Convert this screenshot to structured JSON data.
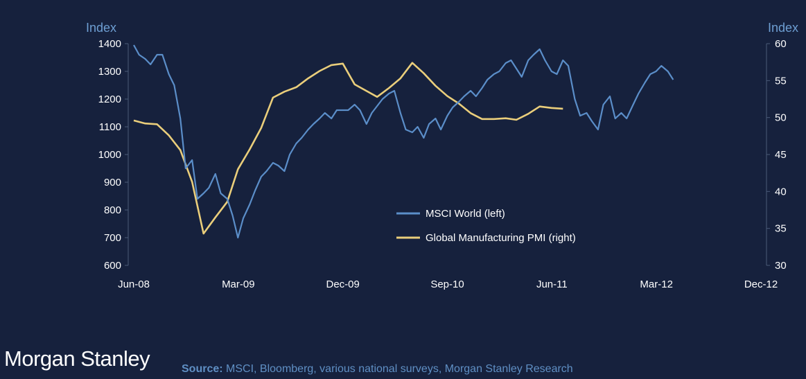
{
  "chart_data": {
    "type": "line",
    "left_axis_unit": "Index",
    "right_axis_unit": "Index",
    "x_tick_labels": [
      "Jun-08",
      "Mar-09",
      "Dec-09",
      "Sep-10",
      "Jun-11",
      "Mar-12",
      "Dec-12"
    ],
    "xlim": [
      "2008-06",
      "2012-12"
    ],
    "left_ylim": [
      600,
      1400
    ],
    "left_yticks": [
      600,
      700,
      800,
      900,
      1000,
      1100,
      1200,
      1300,
      1400
    ],
    "right_ylim": [
      30,
      60
    ],
    "right_yticks": [
      30,
      35,
      40,
      45,
      50,
      55,
      60
    ],
    "legend_position": "lower-right",
    "series": [
      {
        "name": "MSCI World (left)",
        "axis": "left",
        "color": "#5b8ec9",
        "points": [
          [
            "2008-06-01",
            1395
          ],
          [
            "2008-06-15",
            1360
          ],
          [
            "2008-07-01",
            1345
          ],
          [
            "2008-07-15",
            1325
          ],
          [
            "2008-08-01",
            1360
          ],
          [
            "2008-08-15",
            1360
          ],
          [
            "2008-09-01",
            1290
          ],
          [
            "2008-09-15",
            1250
          ],
          [
            "2008-10-01",
            1130
          ],
          [
            "2008-10-15",
            950
          ],
          [
            "2008-11-01",
            980
          ],
          [
            "2008-11-15",
            840
          ],
          [
            "2008-12-01",
            860
          ],
          [
            "2008-12-15",
            880
          ],
          [
            "2009-01-01",
            930
          ],
          [
            "2009-01-15",
            860
          ],
          [
            "2009-02-01",
            840
          ],
          [
            "2009-02-15",
            780
          ],
          [
            "2009-03-01",
            700
          ],
          [
            "2009-03-15",
            770
          ],
          [
            "2009-04-01",
            820
          ],
          [
            "2009-04-15",
            870
          ],
          [
            "2009-05-01",
            920
          ],
          [
            "2009-05-15",
            940
          ],
          [
            "2009-06-01",
            970
          ],
          [
            "2009-06-15",
            960
          ],
          [
            "2009-07-01",
            940
          ],
          [
            "2009-07-15",
            1000
          ],
          [
            "2009-08-01",
            1040
          ],
          [
            "2009-08-15",
            1060
          ],
          [
            "2009-09-01",
            1090
          ],
          [
            "2009-09-15",
            1110
          ],
          [
            "2009-10-01",
            1130
          ],
          [
            "2009-10-15",
            1150
          ],
          [
            "2009-11-01",
            1130
          ],
          [
            "2009-11-15",
            1160
          ],
          [
            "2009-12-01",
            1160
          ],
          [
            "2009-12-15",
            1160
          ],
          [
            "2010-01-01",
            1180
          ],
          [
            "2010-01-15",
            1160
          ],
          [
            "2010-02-01",
            1110
          ],
          [
            "2010-02-15",
            1150
          ],
          [
            "2010-03-01",
            1175
          ],
          [
            "2010-03-15",
            1200
          ],
          [
            "2010-04-01",
            1220
          ],
          [
            "2010-04-15",
            1230
          ],
          [
            "2010-05-01",
            1150
          ],
          [
            "2010-05-15",
            1090
          ],
          [
            "2010-06-01",
            1080
          ],
          [
            "2010-06-15",
            1100
          ],
          [
            "2010-07-01",
            1060
          ],
          [
            "2010-07-15",
            1110
          ],
          [
            "2010-08-01",
            1130
          ],
          [
            "2010-08-15",
            1090
          ],
          [
            "2010-09-01",
            1140
          ],
          [
            "2010-09-15",
            1170
          ],
          [
            "2010-10-01",
            1190
          ],
          [
            "2010-10-15",
            1210
          ],
          [
            "2010-11-01",
            1230
          ],
          [
            "2010-11-15",
            1210
          ],
          [
            "2010-12-01",
            1240
          ],
          [
            "2010-12-15",
            1270
          ],
          [
            "2011-01-01",
            1290
          ],
          [
            "2011-01-15",
            1300
          ],
          [
            "2011-02-01",
            1330
          ],
          [
            "2011-02-15",
            1340
          ],
          [
            "2011-03-01",
            1310
          ],
          [
            "2011-03-15",
            1280
          ],
          [
            "2011-04-01",
            1340
          ],
          [
            "2011-04-15",
            1360
          ],
          [
            "2011-05-01",
            1380
          ],
          [
            "2011-05-15",
            1340
          ],
          [
            "2011-06-01",
            1300
          ],
          [
            "2011-06-15",
            1290
          ],
          [
            "2011-07-01",
            1340
          ],
          [
            "2011-07-15",
            1320
          ],
          [
            "2011-08-01",
            1200
          ],
          [
            "2011-08-15",
            1140
          ],
          [
            "2011-09-01",
            1150
          ],
          [
            "2011-09-15",
            1120
          ],
          [
            "2011-10-01",
            1090
          ],
          [
            "2011-10-15",
            1180
          ],
          [
            "2011-11-01",
            1210
          ],
          [
            "2011-11-15",
            1130
          ],
          [
            "2011-12-01",
            1150
          ],
          [
            "2011-12-15",
            1130
          ],
          [
            "2012-01-01",
            1180
          ],
          [
            "2012-01-15",
            1220
          ],
          [
            "2012-02-01",
            1260
          ],
          [
            "2012-02-15",
            1290
          ],
          [
            "2012-03-01",
            1300
          ],
          [
            "2012-03-15",
            1320
          ],
          [
            "2012-04-01",
            1300
          ],
          [
            "2012-04-15",
            1270
          ]
        ]
      },
      {
        "name": "Global Manufacturing PMI (right)",
        "axis": "right",
        "color": "#eace7b",
        "points": [
          [
            "2008-06",
            49.6
          ],
          [
            "2008-07",
            49.2
          ],
          [
            "2008-08",
            49.1
          ],
          [
            "2008-09",
            47.6
          ],
          [
            "2008-10",
            45.6
          ],
          [
            "2008-11",
            41.3
          ],
          [
            "2008-12",
            34.3
          ],
          [
            "2009-01",
            36.5
          ],
          [
            "2009-02",
            38.6
          ],
          [
            "2009-03",
            43.0
          ],
          [
            "2009-04",
            45.7
          ],
          [
            "2009-05",
            48.6
          ],
          [
            "2009-06",
            52.7
          ],
          [
            "2009-07",
            53.5
          ],
          [
            "2009-08",
            54.1
          ],
          [
            "2009-09",
            55.3
          ],
          [
            "2009-10",
            56.3
          ],
          [
            "2009-11",
            57.1
          ],
          [
            "2009-12",
            57.3
          ],
          [
            "2010-01",
            54.5
          ],
          [
            "2010-02",
            53.6
          ],
          [
            "2010-03",
            52.8
          ],
          [
            "2010-04",
            54.0
          ],
          [
            "2010-05",
            55.3
          ],
          [
            "2010-06",
            57.4
          ],
          [
            "2010-07",
            56.0
          ],
          [
            "2010-08",
            54.3
          ],
          [
            "2010-09",
            52.9
          ],
          [
            "2010-10",
            51.9
          ],
          [
            "2010-11",
            50.6
          ],
          [
            "2010-12",
            49.8
          ],
          [
            "2011-01",
            49.8
          ],
          [
            "2011-02",
            49.9
          ],
          [
            "2011-03",
            49.7
          ],
          [
            "2011-04",
            50.5
          ],
          [
            "2011-05",
            51.5
          ],
          [
            "2011-06",
            51.3
          ],
          [
            "2011-07",
            51.2
          ]
        ]
      }
    ]
  },
  "footer": {
    "logo": "Morgan Stanley",
    "source_label": "Source:",
    "source_text": " MSCI, Bloomberg, various national surveys, Morgan Stanley Research"
  }
}
